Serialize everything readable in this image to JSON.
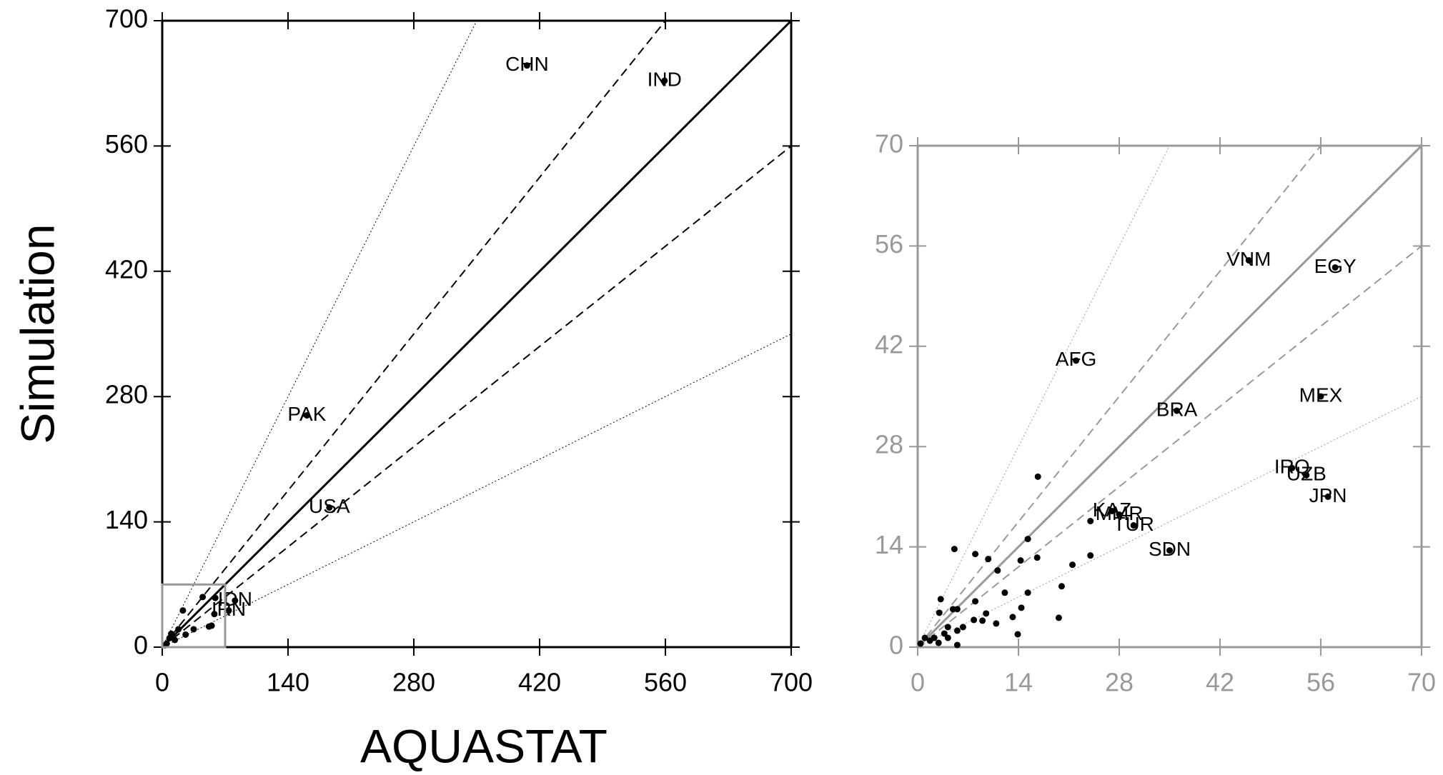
{
  "chart_data": [
    {
      "type": "scatter",
      "xlabel": "AQUASTAT",
      "ylabel": "Simulation",
      "xlim": [
        0,
        700
      ],
      "ylim": [
        0,
        700
      ],
      "xticks": [
        0,
        140,
        280,
        420,
        560,
        700
      ],
      "yticks": [
        0,
        140,
        280,
        420,
        560,
        700
      ],
      "axis_color": "#000000",
      "point_color": "#000000",
      "reference_lines": [
        {
          "slope": 1,
          "style": "solid"
        },
        {
          "slope": 1.25,
          "style": "dashed"
        },
        {
          "slope": 0.8,
          "style": "dashed"
        },
        {
          "slope": 2,
          "style": "dotted"
        },
        {
          "slope": 0.5,
          "style": "dotted"
        }
      ],
      "series": [
        {
          "x": [
            406,
            559,
            161,
            186,
            81,
            74,
            45,
            59,
            55,
            52,
            23,
            35,
            18,
            10,
            58,
            5,
            8,
            3,
            14,
            26
          ],
          "values": [
            650,
            633,
            259,
            156,
            52,
            41,
            56,
            55,
            24,
            23,
            41,
            20,
            20,
            15,
            37,
            4,
            10,
            2,
            8,
            14
          ],
          "labels": [
            "CHN",
            "IND",
            "PAK",
            "USA",
            "IDN",
            "IRN",
            null,
            null,
            null,
            null,
            null,
            null,
            null,
            null,
            null,
            null,
            null,
            null,
            null,
            null
          ]
        }
      ]
    },
    {
      "type": "scatter",
      "xlim": [
        0,
        70
      ],
      "ylim": [
        0,
        70
      ],
      "xticks": [
        0,
        14,
        28,
        42,
        56,
        70
      ],
      "yticks": [
        0,
        14,
        28,
        42,
        56,
        70
      ],
      "axis_color": "#999999",
      "point_color": "#000000",
      "reference_lines": [
        {
          "slope": 1,
          "style": "solid"
        },
        {
          "slope": 1.25,
          "style": "dashed"
        },
        {
          "slope": 0.8,
          "style": "dashed"
        },
        {
          "slope": 2,
          "style": "dotted"
        },
        {
          "slope": 0.5,
          "style": "dotted"
        }
      ],
      "series": [
        {
          "x": [
            22,
            46,
            58,
            36,
            56,
            52,
            54,
            57,
            27,
            28,
            30,
            35,
            16.7,
            15.3,
            5.1,
            24,
            16.6,
            14.3,
            9.8,
            8,
            24,
            21.5,
            11.1,
            20,
            15.3,
            12.1,
            8,
            3.2,
            3,
            14.4,
            19.6,
            13.2,
            9.5,
            9,
            7.8,
            10.9,
            13.9,
            5.5,
            4.9,
            6.3,
            5.5,
            4.2,
            3.7,
            2.3,
            1,
            1.7,
            0.4,
            5.5,
            2.9,
            4.2
          ],
          "values": [
            40,
            54,
            53,
            33,
            35,
            25,
            24,
            21,
            19,
            18.5,
            17,
            13.5,
            23.8,
            15.1,
            13.7,
            17.6,
            12.5,
            12.1,
            12.3,
            13,
            12.8,
            11.5,
            10.7,
            8.5,
            7.6,
            7.6,
            6.4,
            6.7,
            4.8,
            5.5,
            4.1,
            4.2,
            4.7,
            3.7,
            3.8,
            3.3,
            1.8,
            5.3,
            5.3,
            2.8,
            2.3,
            2.8,
            1.9,
            1.3,
            1.3,
            0.9,
            0.5,
            0.3,
            0.6,
            1.3
          ],
          "labels": [
            "AFG",
            "VNM",
            "EGY",
            "BRA",
            "MEX",
            "IRQ",
            "UZB",
            "JPN",
            "KAZ",
            "MMR",
            "TUR",
            "SDN",
            null,
            null,
            null,
            null,
            null,
            null,
            null,
            null,
            null,
            null,
            null,
            null,
            null,
            null,
            null,
            null,
            null,
            null,
            null,
            null,
            null,
            null,
            null,
            null,
            null,
            null,
            null,
            null,
            null,
            null,
            null,
            null,
            null,
            null,
            null,
            null,
            null,
            null
          ]
        }
      ]
    }
  ]
}
